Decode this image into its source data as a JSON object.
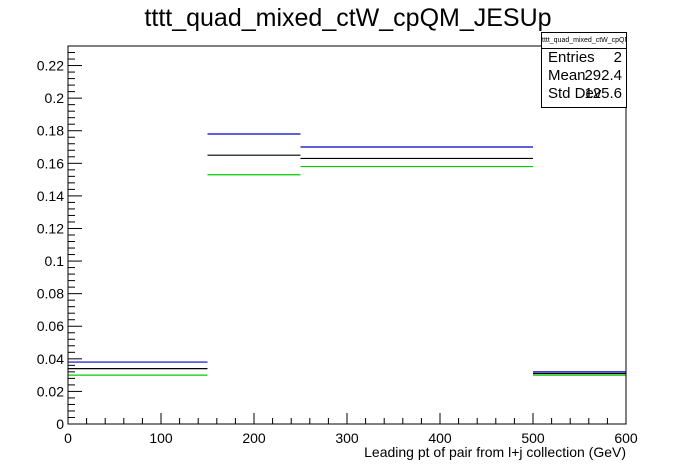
{
  "chart_data": {
    "type": "step-histogram",
    "title": "tttt_quad_mixed_ctW_cpQM_JESUp",
    "xlabel": "Leading pt of pair from l+j collection (GeV)",
    "ylabel": "",
    "xlim": [
      0,
      600
    ],
    "ylim": [
      0,
      0.232
    ],
    "bin_edges": [
      0,
      150,
      250,
      500,
      600
    ],
    "x_ticks": [
      0,
      100,
      200,
      300,
      400,
      500,
      600
    ],
    "y_ticks": [
      0,
      0.02,
      0.04,
      0.06,
      0.08,
      0.1,
      0.12,
      0.14,
      0.16,
      0.18,
      0.2,
      0.22
    ],
    "series": [
      {
        "color": "#0000cc",
        "values": [
          0.038,
          0.178,
          0.17,
          0.032
        ]
      },
      {
        "color": "#000000",
        "values": [
          0.034,
          0.165,
          0.163,
          0.031
        ]
      },
      {
        "color": "#00cc00",
        "values": [
          0.03,
          0.153,
          0.158,
          0.03
        ]
      }
    ],
    "stats_box": {
      "title": "tttt_quad_mixed_ctW_cpQM_JESUp",
      "rows": [
        {
          "label": "Entries",
          "value": "2"
        },
        {
          "label": "Mean",
          "value": "292.4"
        },
        {
          "label": "Std Dev",
          "value": "125.6"
        }
      ]
    },
    "grid": false,
    "legend": "none"
  }
}
